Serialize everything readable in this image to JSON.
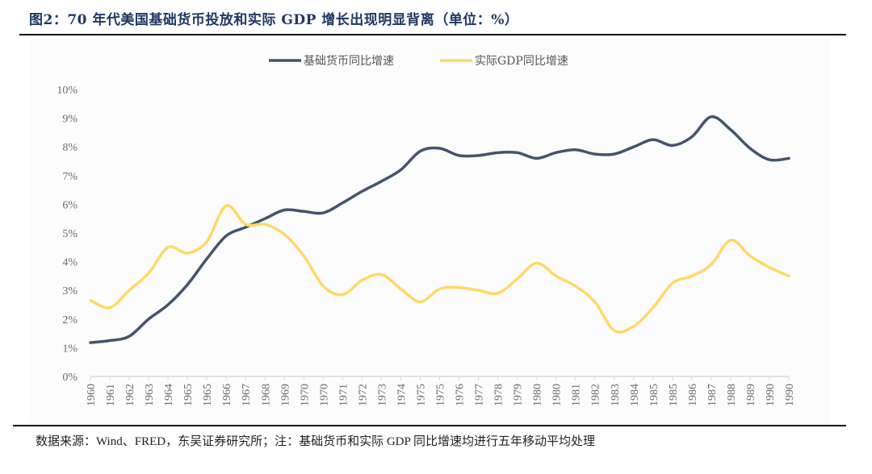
{
  "title": "图2：70 年代美国基础货币投放和实际 GDP 增长出现明显背离（单位：%）",
  "source": "数据来源：Wind、FRED，东吴证券研究所；注：基础货币和实际 GDP 同比增速均进行五年移动平均处理",
  "chart_data": {
    "type": "line",
    "title": "70 年代美国基础货币投放和实际 GDP 增长出现明显背离（单位：%）",
    "xlabel": "",
    "ylabel": "",
    "ylim": [
      0,
      10
    ],
    "yticks": [
      "0%",
      "1%",
      "2%",
      "3%",
      "4%",
      "5%",
      "6%",
      "7%",
      "8%",
      "9%",
      "10%"
    ],
    "grid": false,
    "legend_position": "top-center",
    "categories": [
      "1960",
      "1961",
      "1962",
      "1963",
      "1964",
      "1965",
      "1965",
      "1966",
      "1967",
      "1968",
      "1969",
      "1970",
      "1970",
      "1971",
      "1972",
      "1973",
      "1974",
      "1975",
      "1975",
      "1976",
      "1977",
      "1978",
      "1979",
      "1980",
      "1980",
      "1981",
      "1982",
      "1983",
      "1984",
      "1985",
      "1985",
      "1986",
      "1987",
      "1988",
      "1989",
      "1990",
      "1990"
    ],
    "series": [
      {
        "name": "基础货币同比增速",
        "color": "#44546a",
        "values": [
          1.18,
          1.25,
          1.4,
          2.0,
          2.5,
          3.2,
          4.1,
          4.9,
          5.2,
          5.5,
          5.8,
          5.75,
          5.7,
          6.05,
          6.45,
          6.8,
          7.2,
          7.85,
          7.95,
          7.7,
          7.7,
          7.8,
          7.8,
          7.6,
          7.8,
          7.9,
          7.75,
          7.75,
          8.0,
          8.25,
          8.05,
          8.35,
          9.05,
          8.6,
          7.95,
          7.55,
          7.6
        ]
      },
      {
        "name": "实际GDP同比增速",
        "color": "#ffd966",
        "values": [
          2.65,
          2.4,
          3.0,
          3.6,
          4.5,
          4.3,
          4.7,
          5.95,
          5.3,
          5.3,
          4.95,
          4.2,
          3.15,
          2.85,
          3.35,
          3.55,
          3.05,
          2.6,
          3.05,
          3.1,
          3.0,
          2.9,
          3.4,
          3.95,
          3.5,
          3.15,
          2.6,
          1.6,
          1.75,
          2.4,
          3.25,
          3.5,
          3.9,
          4.75,
          4.2,
          3.8,
          3.5
        ]
      }
    ]
  }
}
